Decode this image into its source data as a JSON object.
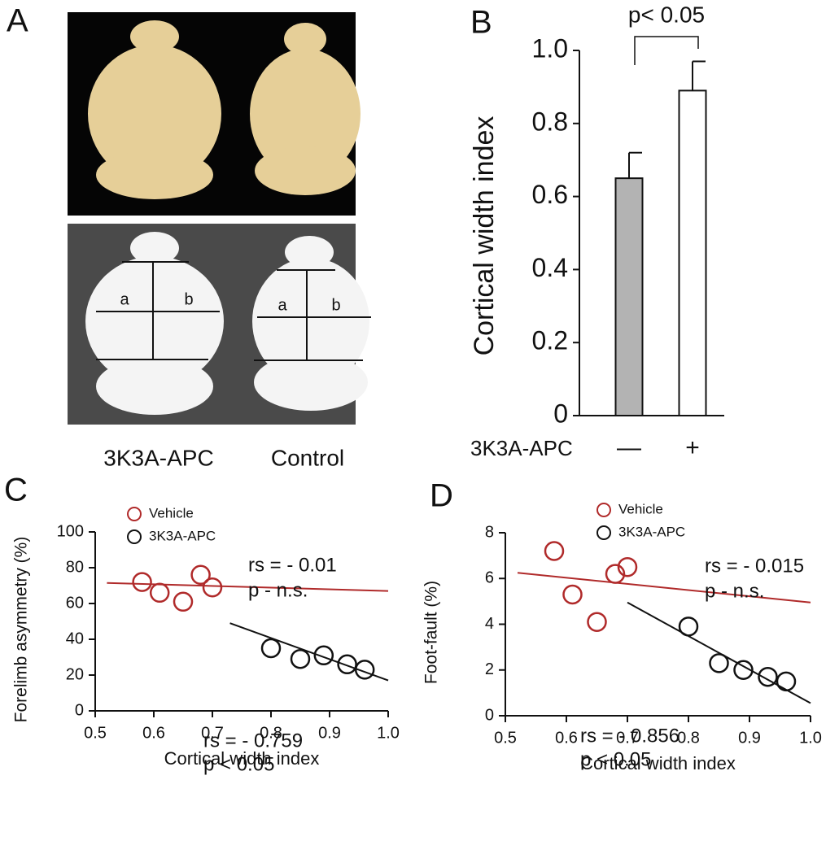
{
  "panel_a": {
    "label": "A",
    "measure_labels": [
      "a",
      "b",
      "a",
      "b"
    ],
    "captions": [
      "3K3A-APC",
      "Control"
    ]
  },
  "chart_data": [
    {
      "type": "bar",
      "panel_label": "B",
      "y_label": "Cortical width index",
      "x_label": "3K3A-APC",
      "categories": [
        "—",
        "+"
      ],
      "values": [
        0.65,
        0.89
      ],
      "errors": [
        0.07,
        0.08
      ],
      "colors": [
        "#b3b3b3",
        "#ffffff"
      ],
      "annotation": "p< 0.05",
      "ylim": [
        0,
        1
      ],
      "yticks": [
        0,
        0.2,
        0.4,
        0.6,
        0.8,
        {
          "value": 1,
          "label": "1.0"
        }
      ]
    },
    {
      "type": "scatter",
      "panel_label": "C",
      "x_label": "Cortical width index",
      "y_label": "Forelimb asymmetry (%)",
      "xlim": [
        0.5,
        1
      ],
      "xticks": [
        0.5,
        0.6,
        0.7,
        0.8,
        0.9,
        {
          "value": 1,
          "label": "1.0"
        }
      ],
      "ylim": [
        0,
        100
      ],
      "yticks": [
        0,
        20,
        40,
        60,
        80,
        100
      ],
      "series": [
        {
          "name": "Vehicle",
          "color": "#b02a2a",
          "x": [
            0.58,
            0.61,
            0.65,
            0.68,
            0.7
          ],
          "values": [
            72,
            66,
            61,
            76,
            69
          ],
          "fit": {
            "x": [
              0.52,
              1
            ],
            "values": [
              71.5,
              67
            ]
          },
          "annotations": [
            "rs = - 0.01",
            "p - n.s."
          ]
        },
        {
          "name": "3K3A-APC",
          "color": "#111111",
          "x": [
            0.8,
            0.85,
            0.89,
            0.93,
            0.96
          ],
          "values": [
            35,
            29,
            31,
            26,
            23
          ],
          "fit": {
            "x": [
              0.73,
              1
            ],
            "values": [
              49,
              17
            ]
          },
          "annotations": [
            "rs = - 0.759",
            "p < 0.05"
          ]
        }
      ]
    },
    {
      "type": "scatter",
      "panel_label": "D",
      "x_label": "Cortical width index",
      "y_label": "Foot-fault (%)",
      "xlim": [
        0.5,
        1
      ],
      "xticks": [
        0.5,
        0.6,
        0.7,
        0.8,
        0.9,
        {
          "value": 1,
          "label": "1.0"
        }
      ],
      "ylim": [
        0,
        8
      ],
      "yticks": [
        0,
        2,
        4,
        6,
        8
      ],
      "series": [
        {
          "name": "Vehicle",
          "color": "#b02a2a",
          "x": [
            0.58,
            0.61,
            0.65,
            0.68,
            0.7
          ],
          "values": [
            7.2,
            5.3,
            4.1,
            6.2,
            6.5
          ],
          "fit": {
            "x": [
              0.52,
              1
            ],
            "values": [
              6.25,
              4.95
            ]
          },
          "annotations": [
            "rs = - 0.015",
            "p - n.s."
          ]
        },
        {
          "name": "3K3A-APC",
          "color": "#111111",
          "x": [
            0.8,
            0.85,
            0.89,
            0.93,
            0.96
          ],
          "values": [
            3.9,
            2.3,
            2.0,
            1.7,
            1.5
          ],
          "fit": {
            "x": [
              0.7,
              1
            ],
            "values": [
              4.95,
              0.55
            ]
          },
          "annotations": [
            "rs = - 0.856",
            "p < 0.05"
          ]
        }
      ]
    }
  ]
}
